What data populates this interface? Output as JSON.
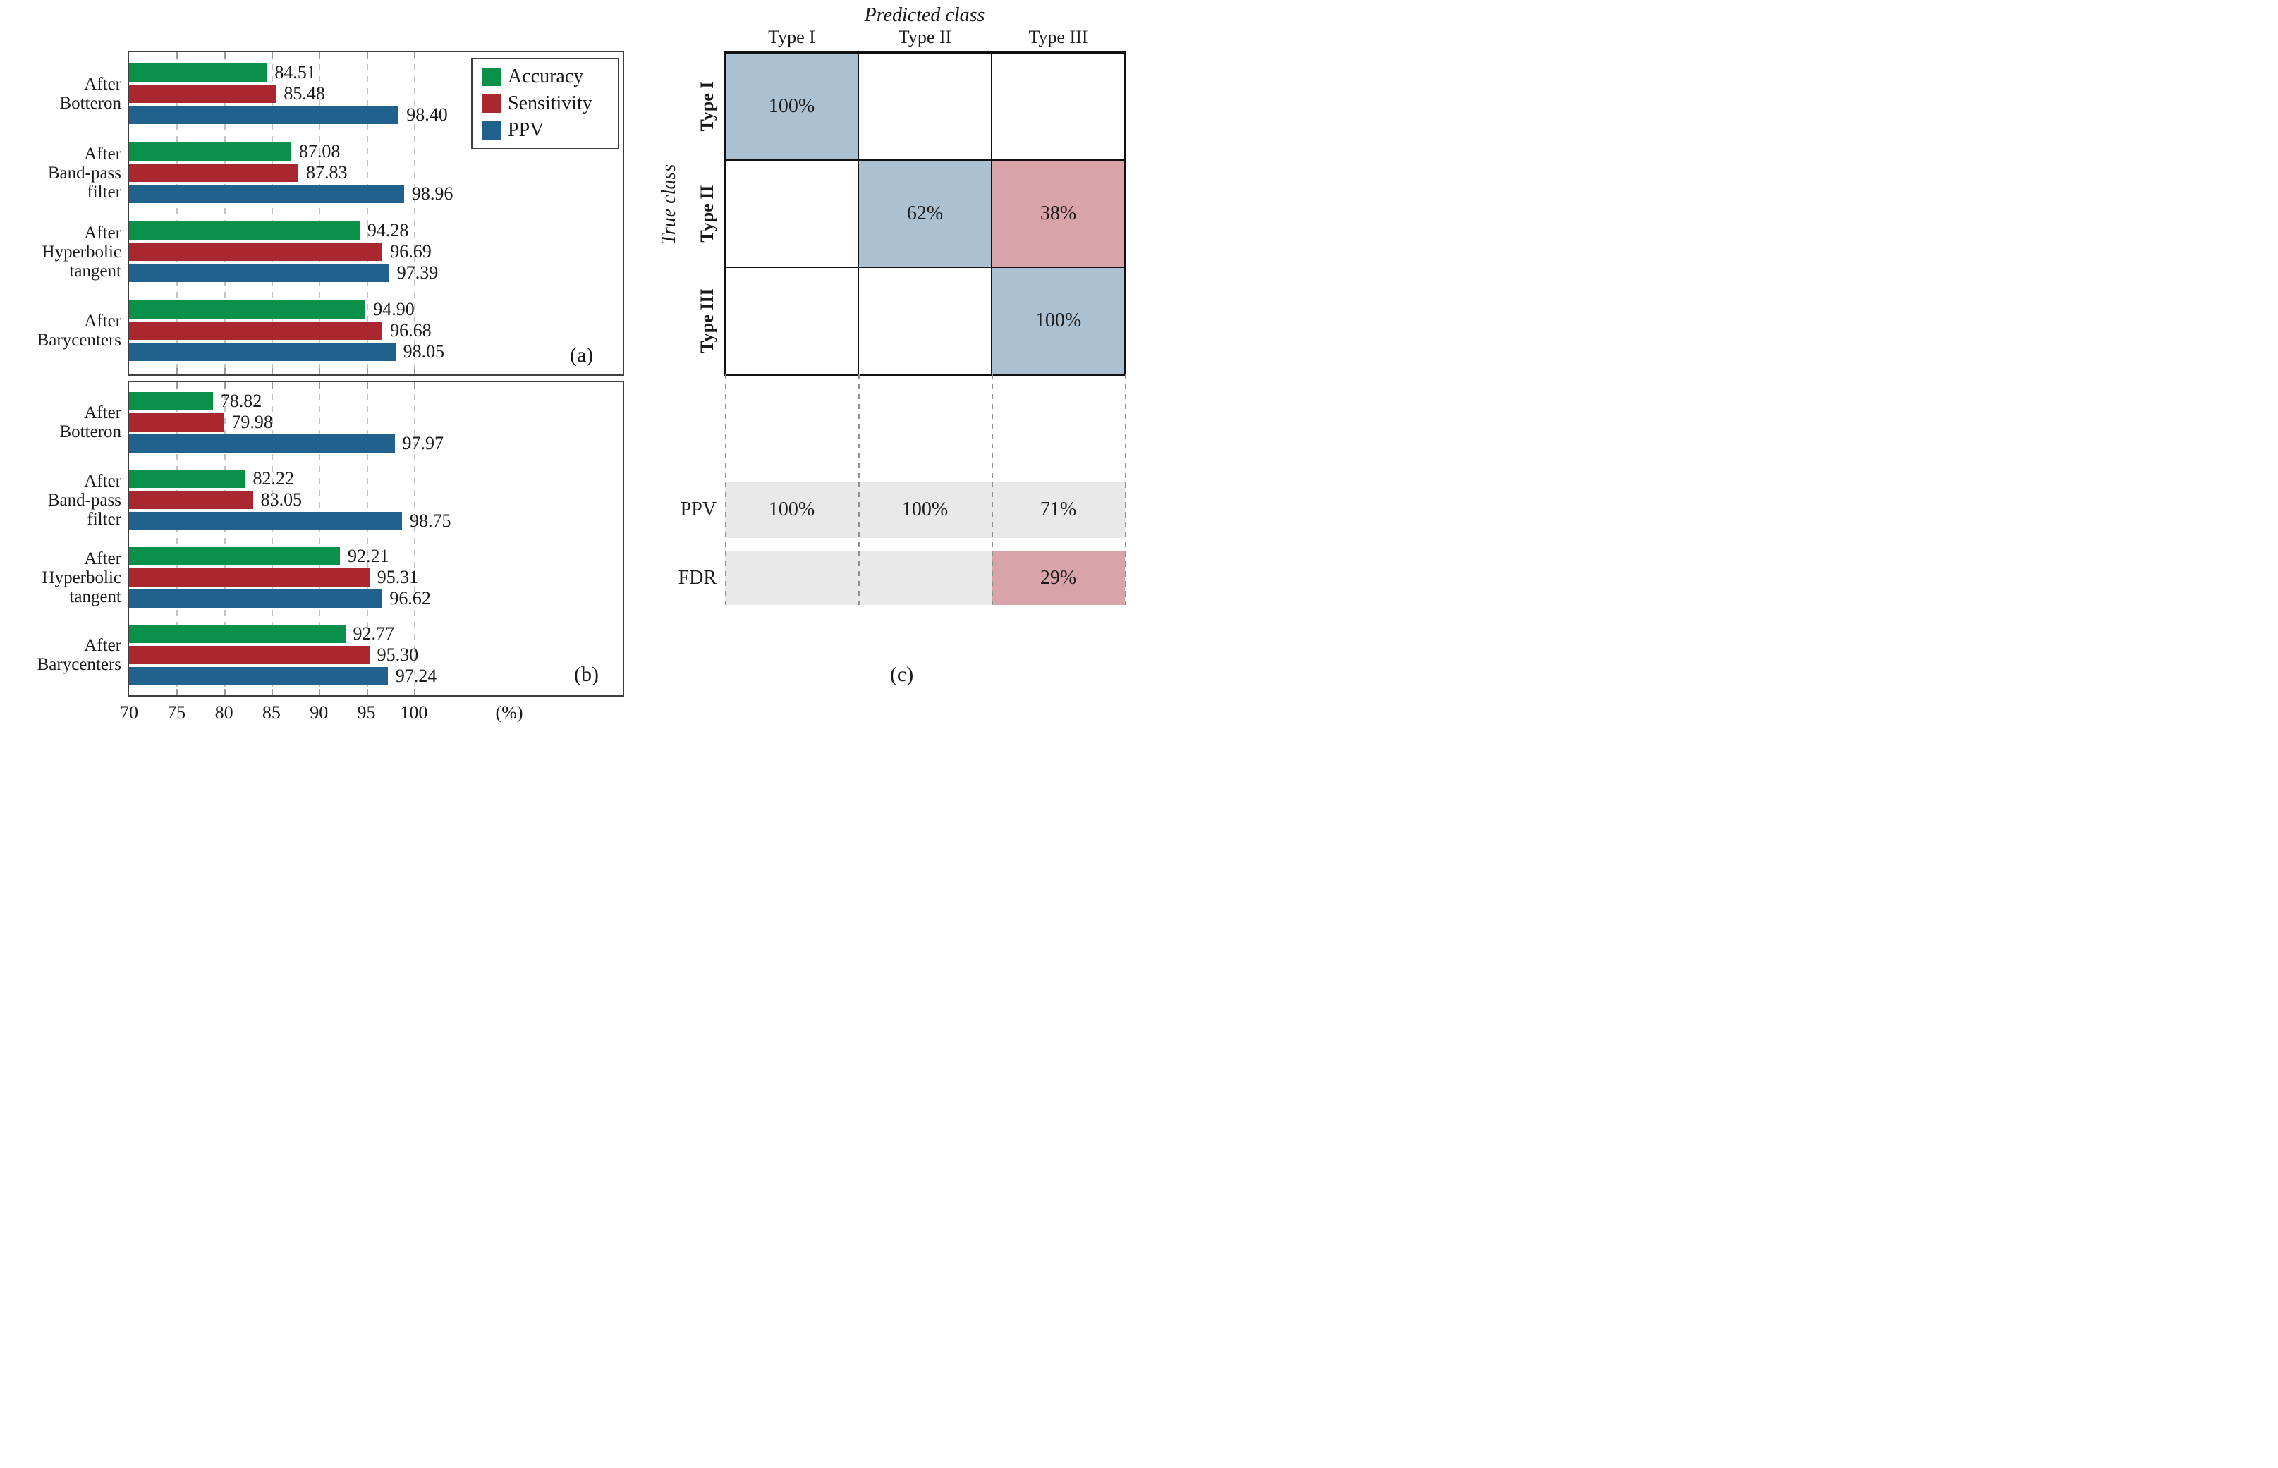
{
  "axis": {
    "min": 70,
    "max": 122,
    "tick_labels": [
      "70",
      "75",
      "80",
      "85",
      "90",
      "95",
      "100"
    ],
    "tick_values": [
      70,
      75,
      80,
      85,
      90,
      95,
      100
    ],
    "gridline_values": [
      75,
      80,
      85,
      90,
      95,
      100
    ],
    "unit_label": "(%)"
  },
  "legend": {
    "entries": [
      {
        "label": "Accuracy",
        "color": "#0a9049"
      },
      {
        "label": "Sensitivity",
        "color": "#a9282f"
      },
      {
        "label": "PPV",
        "color": "#20618e"
      }
    ]
  },
  "panel_labels": {
    "a": "(a)",
    "b": "(b)",
    "c": "(c)"
  },
  "chart_data": [
    {
      "type": "bar",
      "id": "a",
      "orientation": "horizontal",
      "xlim": [
        70,
        122
      ],
      "series_names": [
        "Accuracy",
        "Sensitivity",
        "PPV"
      ],
      "categories": [
        "After Botteron",
        "After Band-pass filter",
        "After Hyperbolic tangent",
        "After Barycenters"
      ],
      "groups": [
        {
          "label_lines": [
            "After",
            "Botteron"
          ],
          "values": [
            "84.51",
            "85.48",
            "98.40"
          ]
        },
        {
          "label_lines": [
            "After",
            "Band-pass",
            "filter"
          ],
          "values": [
            "87.08",
            "87.83",
            "98.96"
          ]
        },
        {
          "label_lines": [
            "After",
            "Hyperbolic",
            "tangent"
          ],
          "values": [
            "94.28",
            "96.69",
            "97.39"
          ]
        },
        {
          "label_lines": [
            "After",
            "Barycenters"
          ],
          "values": [
            "94.90",
            "96.68",
            "98.05"
          ]
        }
      ]
    },
    {
      "type": "bar",
      "id": "b",
      "orientation": "horizontal",
      "xlim": [
        70,
        122
      ],
      "series_names": [
        "Accuracy",
        "Sensitivity",
        "PPV"
      ],
      "categories": [
        "After Botteron",
        "After Band-pass filter",
        "After Hyperbolic tangent",
        "After Barycenters"
      ],
      "groups": [
        {
          "label_lines": [
            "After",
            "Botteron"
          ],
          "values": [
            "78.82",
            "79.98",
            "97.97"
          ]
        },
        {
          "label_lines": [
            "After",
            "Band-pass",
            "filter"
          ],
          "values": [
            "82.22",
            "83.05",
            "98.75"
          ]
        },
        {
          "label_lines": [
            "After",
            "Hyperbolic",
            "tangent"
          ],
          "values": [
            "92.21",
            "95.31",
            "96.62"
          ]
        },
        {
          "label_lines": [
            "After",
            "Barycenters"
          ],
          "values": [
            "92.77",
            "95.30",
            "97.24"
          ]
        }
      ]
    },
    {
      "type": "heatmap",
      "id": "c",
      "title": "Predicted class",
      "row_title": "True class",
      "col_headers": [
        "Type I",
        "Type II",
        "Type III"
      ],
      "row_headers": [
        "Type I",
        "Type II",
        "Type III"
      ],
      "cells": [
        [
          {
            "text": "100%",
            "style": "blue"
          },
          {
            "text": "",
            "style": "white"
          },
          {
            "text": "",
            "style": "white"
          }
        ],
        [
          {
            "text": "",
            "style": "white"
          },
          {
            "text": "62%",
            "style": "blue"
          },
          {
            "text": "38%",
            "style": "pink"
          }
        ],
        [
          {
            "text": "",
            "style": "white"
          },
          {
            "text": "",
            "style": "white"
          },
          {
            "text": "100%",
            "style": "blue"
          }
        ]
      ],
      "summary_rows": [
        {
          "label": "PPV",
          "values": [
            {
              "text": "100%",
              "style": "gray"
            },
            {
              "text": "100%",
              "style": "gray"
            },
            {
              "text": "71%",
              "style": "gray"
            }
          ]
        },
        {
          "label": "FDR",
          "values": [
            {
              "text": "",
              "style": "gray"
            },
            {
              "text": "",
              "style": "gray"
            },
            {
              "text": "29%",
              "style": "pink"
            }
          ]
        }
      ],
      "colors": {
        "blue": "#abc0d1",
        "pink": "#d9a4a9",
        "gray": "#e9e9e9",
        "white": "#ffffff"
      }
    }
  ]
}
